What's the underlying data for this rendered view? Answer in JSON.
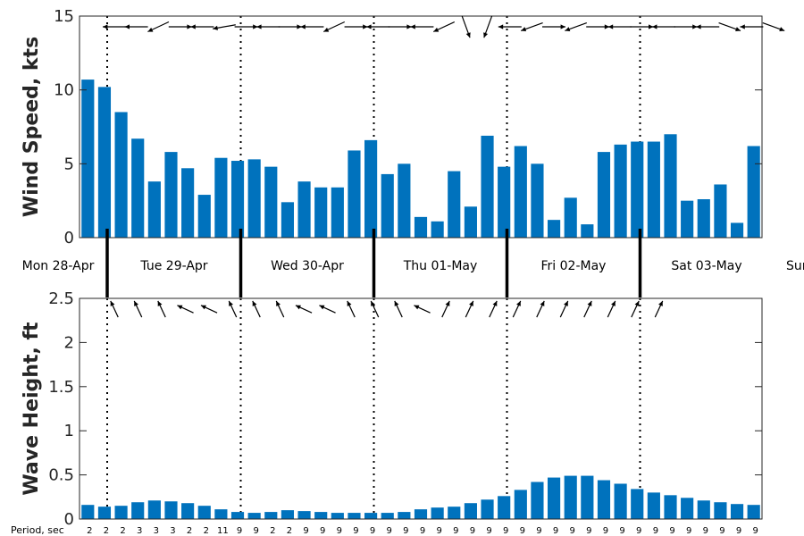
{
  "chart_data": [
    {
      "type": "bar",
      "ylabel": "Wind Speed, kts",
      "ylim": [
        0,
        15
      ],
      "yticks": [
        "0",
        "5",
        "10",
        "15"
      ],
      "color": "#0072BD",
      "values": [
        10.7,
        10.2,
        8.5,
        6.7,
        3.8,
        5.8,
        4.7,
        2.9,
        5.4,
        5.2,
        5.3,
        4.8,
        2.4,
        3.8,
        3.4,
        3.4,
        5.9,
        6.6,
        4.3,
        5.0,
        1.4,
        1.1,
        4.5,
        2.1,
        6.9,
        4.8,
        6.2,
        5.0,
        1.2,
        2.7,
        0.9,
        5.8,
        6.3,
        6.5,
        6.5,
        7.0,
        2.5,
        2.6,
        3.6,
        1.0,
        6.2
      ],
      "direction_arrows_deg": [
        180,
        180,
        155,
        0,
        180,
        170,
        0,
        180,
        0,
        180,
        155,
        0,
        180,
        0,
        180,
        155,
        70,
        110,
        180,
        160,
        0,
        160,
        0,
        180,
        0,
        180,
        0,
        180,
        20,
        180,
        20
      ]
    },
    {
      "type": "bar",
      "ylabel": "Wave Height, ft",
      "ylim": [
        0,
        2.5
      ],
      "yticks": [
        "0",
        "0.5",
        "1",
        "1.5",
        "2",
        "2.5"
      ],
      "color": "#0072BD",
      "values": [
        0.16,
        0.14,
        0.15,
        0.19,
        0.21,
        0.2,
        0.18,
        0.15,
        0.11,
        0.08,
        0.07,
        0.08,
        0.1,
        0.09,
        0.08,
        0.07,
        0.07,
        0.07,
        0.07,
        0.08,
        0.11,
        0.13,
        0.14,
        0.18,
        0.22,
        0.26,
        0.33,
        0.42,
        0.47,
        0.49,
        0.49,
        0.44,
        0.4,
        0.34,
        0.3,
        0.27,
        0.24,
        0.21,
        0.19,
        0.17,
        0.16
      ],
      "direction_arrows_deg": [
        245,
        245,
        245,
        205,
        205,
        245,
        245,
        245,
        205,
        205,
        245,
        245,
        245,
        205,
        295,
        295,
        295,
        295,
        295,
        295,
        295,
        295,
        295,
        295
      ],
      "period_label": "Period, sec",
      "periods": [
        "2",
        "2",
        "2",
        "3",
        "3",
        "3",
        "2",
        "2",
        "11",
        "9",
        "9",
        "2",
        "2",
        "9",
        "9",
        "9",
        "9",
        "9",
        "9",
        "9",
        "9",
        "9",
        "9",
        "9",
        "9",
        "9",
        "9",
        "9",
        "9",
        "9",
        "9",
        "9",
        "9",
        "9",
        "9",
        "9",
        "9",
        "9",
        "9",
        "9",
        "9"
      ]
    }
  ],
  "days": [
    "Mon 28-Apr",
    "Tue 29-Apr",
    "Wed 30-Apr",
    "Thu 01-May",
    "Fri 02-May",
    "Sat 03-May",
    "Sun"
  ]
}
